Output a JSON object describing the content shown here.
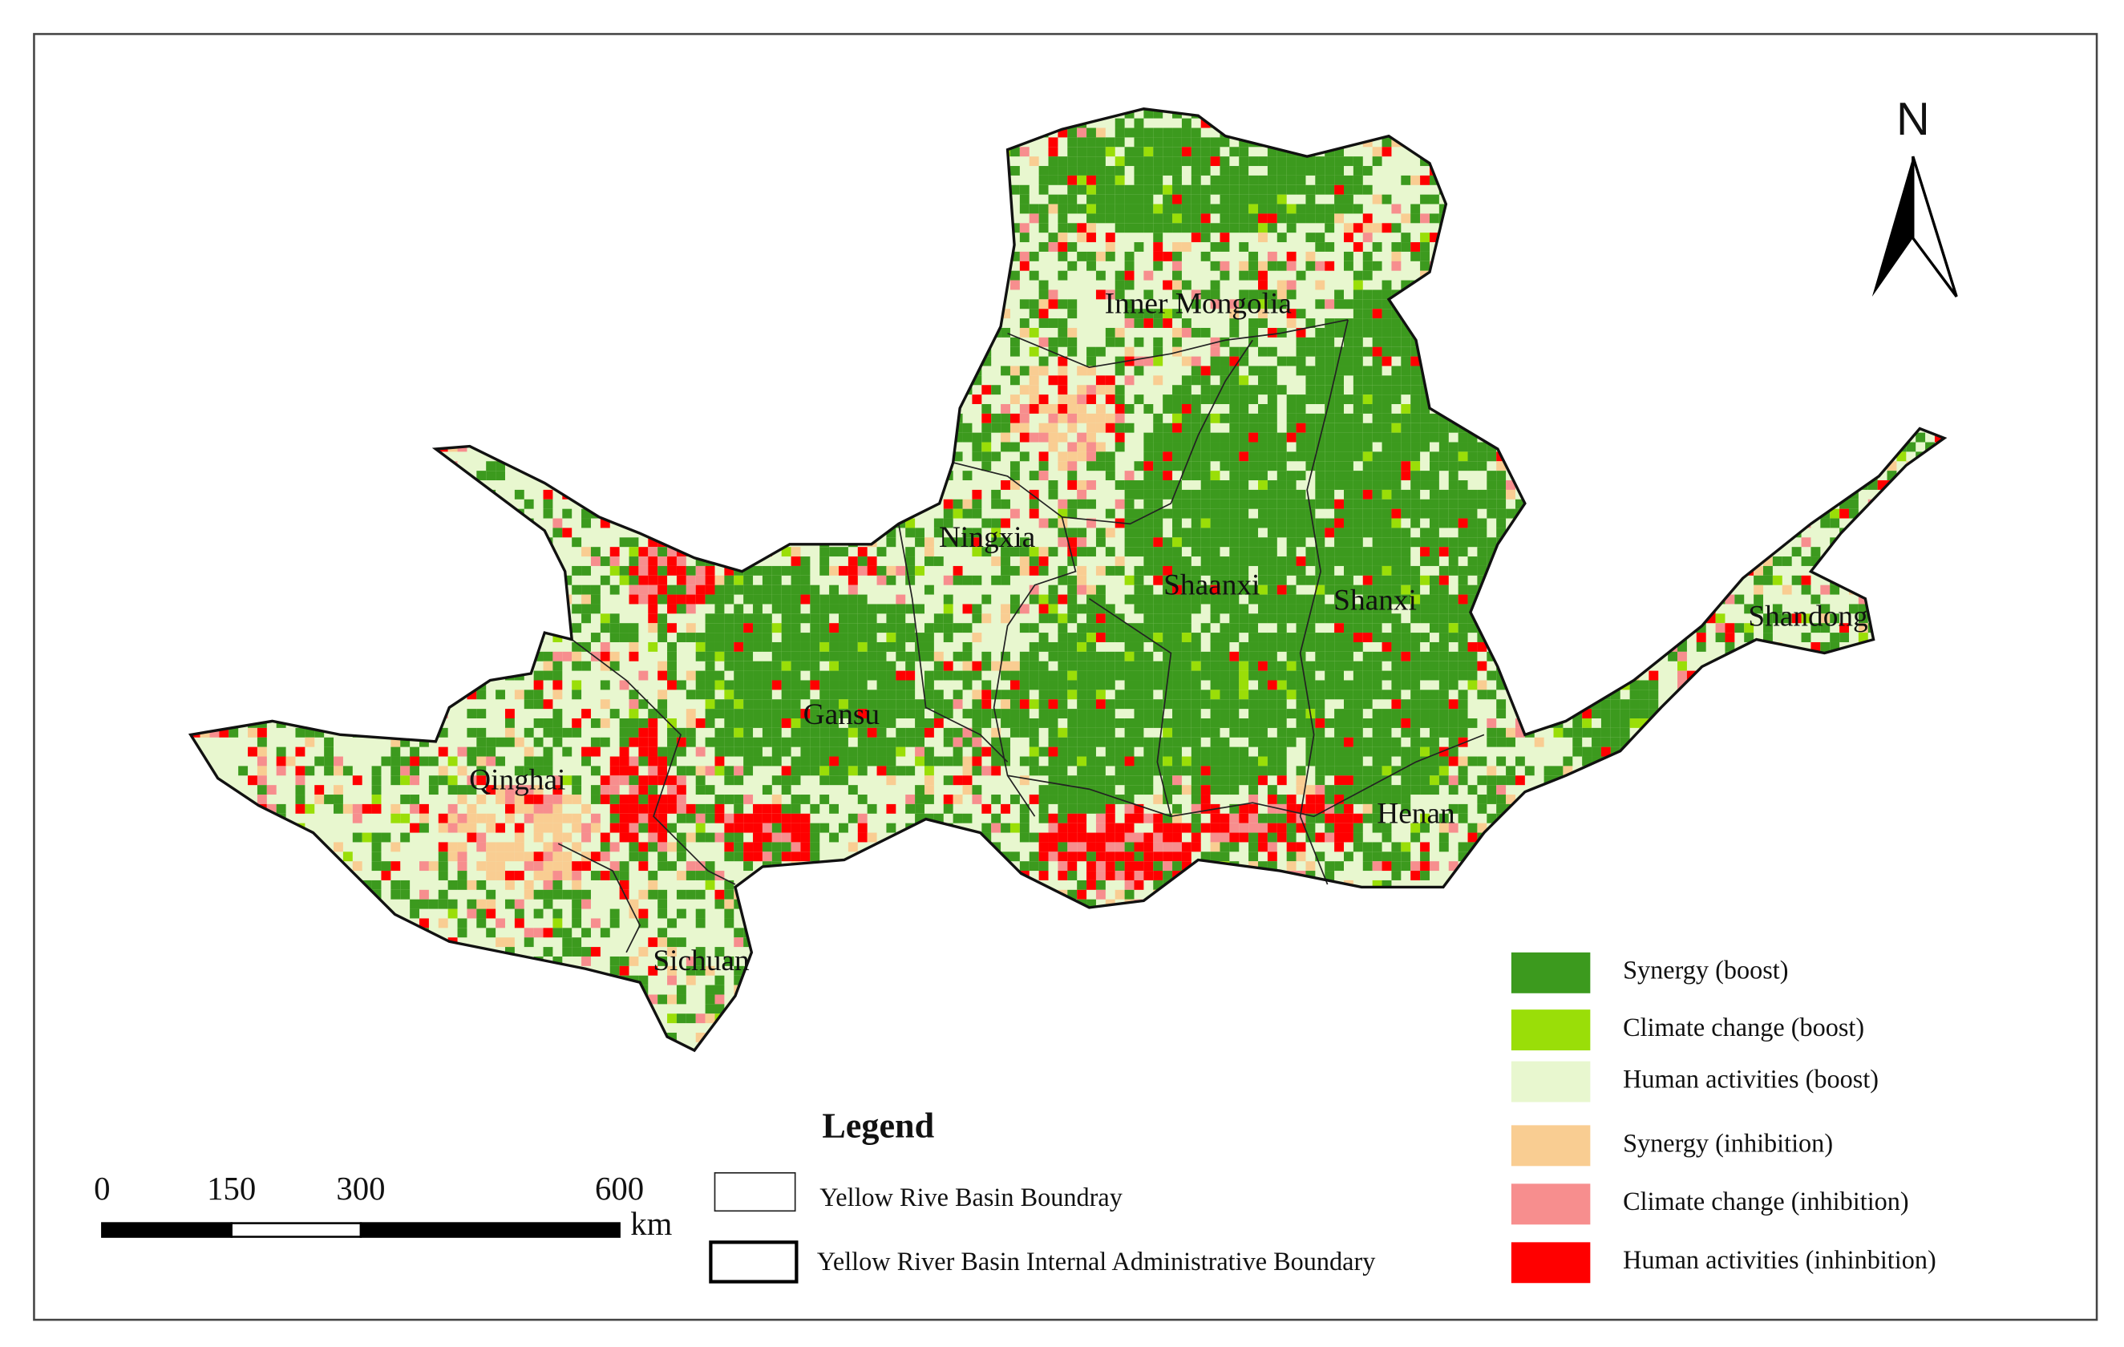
{
  "map": {
    "north_label": "N",
    "regions": [
      "Inner Mongolia",
      "Ningxia",
      "Shaanxi",
      "Shanxi",
      "Shandong",
      "Gansu",
      "Qinghai",
      "Henan",
      "Sichuan"
    ],
    "legend": {
      "title": "Legend",
      "boundaries": [
        "Yellow Rive Basin Boundray",
        "Yellow River Basin Internal Administrative Boundary"
      ],
      "classes": [
        {
          "label": "Synergy (boost)",
          "color": "#3c9a1e"
        },
        {
          "label": "Climate change (boost)",
          "color": "#9ade08"
        },
        {
          "label": "Human activities (boost)",
          "color": "#e8f7cf"
        },
        {
          "label": "Synergy (inhibition)",
          "color": "#f9cd92"
        },
        {
          "label": "Climate change (inhibition)",
          "color": "#f78e8e"
        },
        {
          "label": "Human activities (inhinbition)",
          "color": "#ff0000"
        }
      ]
    },
    "scale_bar": {
      "ticks": [
        0,
        150,
        300,
        600
      ],
      "unit": "km"
    }
  }
}
